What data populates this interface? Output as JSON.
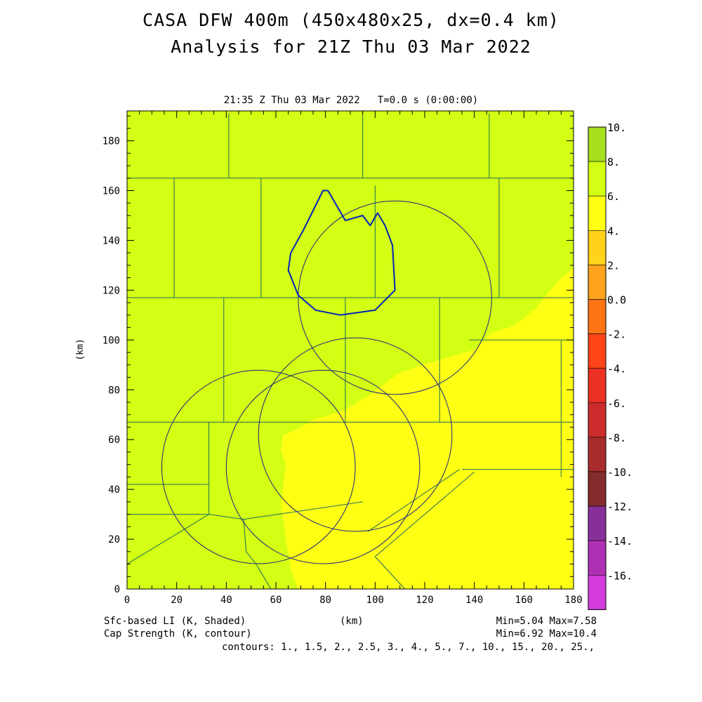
{
  "title": {
    "line1": "CASA DFW 400m (450x480x25, dx=0.4 km)",
    "line2": "Analysis for 21Z Thu 03 Mar 2022"
  },
  "subtitle": "21:35 Z Thu 03 Mar 2022   T=0.0 s (0:00:00)",
  "footer": {
    "shaded_label": "Sfc-based LI (K, Shaded)",
    "contour_label": "Cap Strength (K, contour)",
    "x_unit": "(km)",
    "shaded_range": "Min=5.04 Max=7.58",
    "contour_range": "Min=6.92 Max=10.4",
    "contours": "contours: 1., 1.5, 2., 2.5, 3., 4., 5., 7., 10., 15., 20., 25.,"
  },
  "chart_data": {
    "type": "heatmap",
    "xlabel": "(km)",
    "ylabel": "(km)",
    "xlim": [
      0,
      180
    ],
    "ylim": [
      0,
      192
    ],
    "x_ticks": [
      "0",
      "20",
      "40",
      "60",
      "80",
      "100",
      "120",
      "140",
      "160",
      "180"
    ],
    "y_ticks": [
      "0",
      "20",
      "40",
      "60",
      "80",
      "100",
      "120",
      "140",
      "160",
      "180"
    ],
    "colorbar": {
      "levels": [
        "10.",
        "8.",
        "6.",
        "4.",
        "2.",
        "0.0",
        "-2.",
        "-4.",
        "-6.",
        "-8.",
        "-10.",
        "-12.",
        "-14.",
        "-16."
      ],
      "colors": [
        "#a6e01c",
        "#d3ff14",
        "#ffff14",
        "#ffd21c",
        "#ffa41c",
        "#ff7414",
        "#ff4418",
        "#ec3024",
        "#cc2c2c",
        "#a82c2c",
        "#842c2c",
        "#88309a",
        "#b030b4",
        "#d43cdc"
      ]
    },
    "field_colors": {
      "background": "#d3ff14",
      "warm_region": "#ffff14",
      "contour": "#0022bb",
      "boundaries": "#1f6b58"
    },
    "radar_rings": [
      {
        "cx_km": 79,
        "cy_km": 49,
        "r_km": 39
      },
      {
        "cx_km": 108,
        "cy_km": 117,
        "r_km": 39
      },
      {
        "cx_km": 92,
        "cy_km": 62,
        "r_km": 39
      },
      {
        "cx_km": 53,
        "cy_km": 49,
        "r_km": 39
      }
    ],
    "contour_7_km": [
      [
        81,
        160
      ],
      [
        88,
        148
      ],
      [
        95,
        150
      ],
      [
        98,
        146
      ],
      [
        101,
        151
      ],
      [
        104,
        146
      ],
      [
        107,
        138
      ],
      [
        108,
        120
      ],
      [
        100,
        112
      ],
      [
        86,
        110
      ],
      [
        76,
        112
      ],
      [
        69,
        118
      ],
      [
        65,
        128
      ],
      [
        66,
        135
      ],
      [
        71,
        144
      ],
      [
        74,
        150
      ],
      [
        79,
        160
      ],
      [
        81,
        160
      ]
    ],
    "warm_region_km": [
      [
        180,
        129
      ],
      [
        174,
        124
      ],
      [
        169,
        118
      ],
      [
        165,
        113
      ],
      [
        159,
        108
      ],
      [
        154,
        105
      ],
      [
        147,
        103
      ],
      [
        140,
        96
      ],
      [
        126,
        92
      ],
      [
        110,
        87
      ],
      [
        98,
        78
      ],
      [
        88,
        72
      ],
      [
        82,
        70
      ],
      [
        75,
        68
      ],
      [
        68,
        64
      ],
      [
        63,
        62
      ],
      [
        62,
        56
      ],
      [
        64,
        50
      ],
      [
        63,
        42
      ],
      [
        62,
        34
      ],
      [
        63,
        28
      ],
      [
        64,
        20
      ],
      [
        65,
        14
      ],
      [
        66,
        8
      ],
      [
        69,
        0
      ],
      [
        180,
        0
      ]
    ],
    "counties_km": [
      [
        [
          0,
          165
        ],
        [
          180,
          165
        ]
      ],
      [
        [
          0,
          117
        ],
        [
          180,
          117
        ]
      ],
      [
        [
          0,
          67
        ],
        [
          180,
          67
        ]
      ],
      [
        [
          19,
          165
        ],
        [
          19,
          117
        ]
      ],
      [
        [
          41,
          191
        ],
        [
          41,
          165
        ]
      ],
      [
        [
          54,
          165
        ],
        [
          54,
          117
        ]
      ],
      [
        [
          39,
          117
        ],
        [
          39,
          67
        ]
      ],
      [
        [
          88,
          117
        ],
        [
          88,
          67
        ]
      ],
      [
        [
          126,
          117
        ],
        [
          126,
          67
        ]
      ],
      [
        [
          95,
          191
        ],
        [
          95,
          165
        ]
      ],
      [
        [
          146,
          191
        ],
        [
          146,
          165
        ]
      ],
      [
        [
          100,
          162
        ],
        [
          100,
          117
        ]
      ],
      [
        [
          150,
          165
        ],
        [
          150,
          117
        ]
      ],
      [
        [
          138,
          100
        ],
        [
          180,
          100
        ]
      ],
      [
        [
          175,
          100
        ],
        [
          175,
          45
        ]
      ],
      [
        [
          135,
          48
        ],
        [
          180,
          48
        ]
      ],
      [
        [
          33,
          67
        ],
        [
          33,
          30
        ]
      ],
      [
        [
          0,
          42
        ],
        [
          33,
          42
        ]
      ],
      [
        [
          0,
          30
        ],
        [
          33,
          30
        ]
      ],
      [
        [
          0,
          10
        ],
        [
          33,
          30
        ],
        [
          47,
          28
        ],
        [
          95,
          35
        ]
      ],
      [
        [
          47,
          28
        ],
        [
          48,
          15
        ],
        [
          52,
          10
        ],
        [
          58,
          0
        ]
      ],
      [
        [
          97,
          23
        ],
        [
          134,
          48
        ]
      ],
      [
        [
          100,
          13
        ],
        [
          140,
          47
        ]
      ],
      [
        [
          100,
          13
        ],
        [
          112,
          0
        ]
      ]
    ]
  }
}
